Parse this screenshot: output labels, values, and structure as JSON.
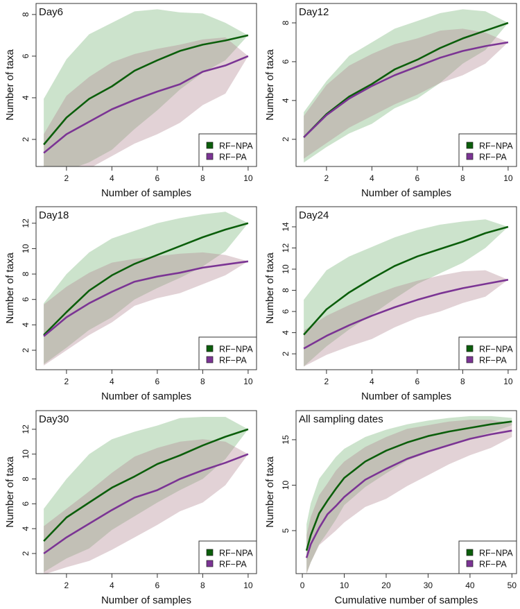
{
  "colors": {
    "npa_line": "#0b5e0b",
    "pa_line": "#7b3494",
    "npa_fill": "#8fc28f",
    "pa_fill": "#b48a92"
  },
  "chart_data": [
    {
      "type": "area",
      "title": "Day6",
      "xlabel": "Number of samples",
      "ylabel": "Number of taxa",
      "xlim": [
        0.66,
        10.37
      ],
      "ylim": [
        0.7,
        8.53
      ],
      "xticks": [
        2,
        4,
        6,
        8,
        10
      ],
      "yticks": [
        2,
        4,
        6,
        8
      ],
      "legend": {
        "placement": "bottom-right",
        "entries": [
          "RF−NPA",
          "RF−PA"
        ]
      },
      "x": [
        1,
        2,
        3,
        4,
        5,
        6,
        7,
        8,
        9,
        10
      ],
      "series": [
        {
          "name": "RF-NPA",
          "mean": [
            1.75,
            3.05,
            3.95,
            4.55,
            5.3,
            5.8,
            6.25,
            6.55,
            6.75,
            7
          ],
          "upper": [
            3.95,
            5.85,
            7.05,
            7.6,
            8.15,
            8.25,
            8.1,
            8.05,
            7.6,
            7
          ],
          "lower": [
            0.5,
            0.5,
            0.9,
            1.5,
            2.5,
            3.4,
            4.4,
            5.2,
            5.8,
            7
          ]
        },
        {
          "name": "RF-PA",
          "mean": [
            1.35,
            2.25,
            2.85,
            3.45,
            3.9,
            4.3,
            4.65,
            5.25,
            5.55,
            6
          ],
          "upper": [
            2.25,
            4.1,
            5.0,
            5.7,
            6.1,
            6.35,
            6.55,
            6.8,
            6.9,
            6
          ],
          "lower": [
            0.3,
            0.3,
            0.6,
            1.2,
            1.8,
            2.25,
            2.8,
            3.65,
            4.2,
            6
          ]
        }
      ]
    },
    {
      "type": "area",
      "title": "Day12",
      "xlabel": "Number of samples",
      "ylabel": "Number of taxa",
      "xlim": [
        0.66,
        10.37
      ],
      "ylim": [
        0.6,
        9.0
      ],
      "xticks": [
        2,
        4,
        6,
        8,
        10
      ],
      "yticks": [
        2,
        4,
        6,
        8
      ],
      "legend": {
        "placement": "bottom-right",
        "entries": [
          "RF−NPA",
          "RF−PA"
        ]
      },
      "x": [
        1,
        2,
        3,
        4,
        5,
        6,
        7,
        8,
        9,
        10
      ],
      "series": [
        {
          "name": "RF-NPA",
          "mean": [
            2.1,
            3.3,
            4.2,
            4.85,
            5.6,
            6.1,
            6.7,
            7.2,
            7.6,
            8
          ],
          "upper": [
            3.4,
            5.0,
            6.3,
            7.0,
            7.7,
            8.1,
            8.5,
            8.7,
            8.6,
            8
          ],
          "lower": [
            0.8,
            1.6,
            2.3,
            2.8,
            3.6,
            4.1,
            4.9,
            5.9,
            6.6,
            8
          ]
        },
        {
          "name": "RF-PA",
          "mean": [
            2.1,
            3.25,
            4.1,
            4.75,
            5.3,
            5.75,
            6.2,
            6.55,
            6.8,
            7
          ],
          "upper": [
            3.2,
            4.8,
            5.8,
            6.4,
            6.9,
            7.2,
            7.6,
            7.7,
            7.5,
            7
          ],
          "lower": [
            1.0,
            1.8,
            2.6,
            3.2,
            3.8,
            4.3,
            4.9,
            5.3,
            5.9,
            7
          ]
        }
      ]
    },
    {
      "type": "area",
      "title": "Day18",
      "xlabel": "Number of samples",
      "ylabel": "Number of taxa",
      "xlim": [
        0.66,
        10.37
      ],
      "ylim": [
        0.47,
        13.3
      ],
      "xticks": [
        2,
        4,
        6,
        8,
        10
      ],
      "yticks": [
        2,
        4,
        6,
        8,
        10,
        12
      ],
      "legend": {
        "placement": "bottom-right",
        "entries": [
          "RF−NPA",
          "RF−PA"
        ]
      },
      "x": [
        1,
        2,
        3,
        4,
        5,
        6,
        7,
        8,
        9,
        10
      ],
      "series": [
        {
          "name": "RF-NPA",
          "mean": [
            3.2,
            5.0,
            6.7,
            7.9,
            8.8,
            9.5,
            10.2,
            10.9,
            11.5,
            12
          ],
          "upper": [
            5.7,
            8.0,
            9.7,
            10.8,
            11.4,
            12.0,
            12.4,
            12.7,
            12.9,
            12
          ],
          "lower": [
            0.9,
            2.2,
            3.6,
            4.6,
            6.0,
            6.9,
            7.7,
            8.6,
            9.8,
            12
          ]
        },
        {
          "name": "RF-PA",
          "mean": [
            3.1,
            4.6,
            5.7,
            6.6,
            7.4,
            7.8,
            8.1,
            8.5,
            8.75,
            9
          ],
          "upper": [
            5.6,
            7.0,
            8.1,
            8.9,
            9.2,
            9.4,
            9.6,
            9.7,
            9.5,
            9
          ],
          "lower": [
            0.8,
            2.0,
            3.2,
            4.2,
            5.5,
            6.1,
            6.5,
            7.2,
            7.9,
            9
          ]
        }
      ]
    },
    {
      "type": "area",
      "title": "Day24",
      "xlabel": "Number of samples",
      "ylabel": "Number of taxa",
      "xlim": [
        0.66,
        10.37
      ],
      "ylim": [
        0.5,
        15.9
      ],
      "xticks": [
        2,
        4,
        6,
        8,
        10
      ],
      "yticks": [
        2,
        4,
        6,
        8,
        10,
        12,
        14
      ],
      "legend": {
        "placement": "bottom-right",
        "entries": [
          "RF−NPA",
          "RF−PA"
        ]
      },
      "x": [
        1,
        2,
        3,
        4,
        5,
        6,
        7,
        8,
        9,
        10
      ],
      "series": [
        {
          "name": "RF-NPA",
          "mean": [
            3.8,
            6.2,
            7.8,
            9.1,
            10.3,
            11.2,
            11.9,
            12.6,
            13.4,
            14
          ],
          "upper": [
            7.1,
            9.9,
            11.2,
            12.1,
            13.0,
            13.7,
            14.2,
            14.5,
            14.7,
            14
          ],
          "lower": [
            0.8,
            2.7,
            4.3,
            5.7,
            7.2,
            8.6,
            9.6,
            10.6,
            12.0,
            14
          ]
        },
        {
          "name": "RF-PA",
          "mean": [
            2.5,
            3.7,
            4.7,
            5.6,
            6.4,
            7.1,
            7.7,
            8.2,
            8.6,
            9
          ],
          "upper": [
            4.2,
            5.6,
            6.6,
            7.5,
            8.3,
            8.9,
            9.4,
            9.8,
            9.9,
            9
          ],
          "lower": [
            0.8,
            1.9,
            2.7,
            3.4,
            4.5,
            5.4,
            6.0,
            6.8,
            7.4,
            9
          ]
        }
      ]
    },
    {
      "type": "area",
      "title": "Day30",
      "xlabel": "Number of samples",
      "ylabel": "Number of taxa",
      "xlim": [
        0.66,
        10.37
      ],
      "ylim": [
        0.38,
        13.5
      ],
      "xticks": [
        2,
        4,
        6,
        8,
        10
      ],
      "yticks": [
        2,
        4,
        6,
        8,
        10,
        12
      ],
      "legend": {
        "placement": "bottom-right",
        "entries": [
          "RF−NPA",
          "RF−PA"
        ]
      },
      "x": [
        1,
        2,
        3,
        4,
        5,
        6,
        7,
        8,
        9,
        10
      ],
      "series": [
        {
          "name": "RF-NPA",
          "mean": [
            3.0,
            4.9,
            6.1,
            7.3,
            8.2,
            9.2,
            9.9,
            10.7,
            11.4,
            12
          ],
          "upper": [
            5.6,
            8.0,
            10.0,
            11.2,
            11.8,
            12.3,
            12.9,
            13.0,
            13.0,
            12
          ],
          "lower": [
            0.5,
            1.6,
            2.4,
            3.9,
            5.0,
            6.1,
            7.1,
            8.0,
            9.6,
            12
          ]
        },
        {
          "name": "RF-PA",
          "mean": [
            2.0,
            3.3,
            4.4,
            5.5,
            6.5,
            7.1,
            8.0,
            8.7,
            9.3,
            10
          ],
          "upper": [
            4.2,
            5.6,
            7.0,
            8.5,
            9.8,
            10.5,
            11.0,
            11.2,
            11.0,
            10
          ],
          "lower": [
            0.3,
            0.9,
            1.4,
            2.3,
            3.3,
            4.3,
            5.4,
            6.1,
            7.5,
            10
          ]
        }
      ]
    },
    {
      "type": "area",
      "title": "All sampling dates",
      "xlabel": "Cumulative number of samples",
      "ylabel": "Number of taxa",
      "xlim": [
        -1.5,
        51.1
      ],
      "ylim": [
        0.27,
        18.2
      ],
      "xticks": [
        0,
        10,
        20,
        30,
        40,
        50
      ],
      "yticks": [
        5,
        10,
        15
      ],
      "legend": {
        "placement": "bottom-right",
        "entries": [
          "RF−NPA",
          "RF−PA"
        ]
      },
      "x": [
        1,
        2,
        4,
        6,
        8,
        10,
        15,
        20,
        25,
        30,
        35,
        40,
        45,
        50
      ],
      "series": [
        {
          "name": "RF-NPA",
          "mean": [
            2.8,
            4.5,
            6.9,
            8.3,
            9.6,
            10.8,
            12.6,
            13.8,
            14.7,
            15.4,
            15.9,
            16.3,
            16.7,
            17
          ],
          "upper": [
            5.7,
            8,
            10.7,
            11.9,
            13.1,
            14,
            15.3,
            16.1,
            16.7,
            17.1,
            17.4,
            17.6,
            17.6,
            17.4
          ],
          "lower": [
            0.3,
            1.5,
            3.5,
            4.8,
            6.2,
            7.8,
            9.8,
            11.3,
            12.7,
            13.6,
            14.4,
            15.1,
            15.8,
            16.6
          ]
        },
        {
          "name": "RF-PA",
          "mean": [
            2,
            3.5,
            5.3,
            6.8,
            7.7,
            8.7,
            10.6,
            11.8,
            12.9,
            13.7,
            14.4,
            15.1,
            15.6,
            16
          ],
          "upper": [
            4.5,
            6.5,
            8.9,
            10.2,
            11.6,
            12.6,
            14.2,
            15.3,
            16.2,
            16.6,
            17.0,
            17.2,
            17.2,
            16.8
          ],
          "lower": [
            0.2,
            1.5,
            3.4,
            4.2,
            5.0,
            5.9,
            7.6,
            8.5,
            9.9,
            11.1,
            12.3,
            13.3,
            14.1,
            15.3
          ]
        }
      ]
    }
  ]
}
